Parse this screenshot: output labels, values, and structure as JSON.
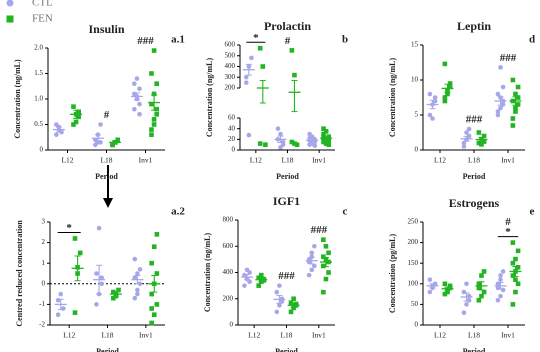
{
  "legend": [
    {
      "name": "CTL",
      "color": "#a6a6ea"
    },
    {
      "name": "FEN",
      "color": "#22b422"
    }
  ],
  "chart_data": [
    {
      "type": "dot",
      "title": "Insulin",
      "panel": "a.1",
      "ylabel": "Concentration (ng/mL)",
      "xlabel": "Period",
      "categories": [
        "L12",
        "L18",
        "Inv1"
      ],
      "ylim": [
        0,
        2
      ],
      "yticks": [
        0,
        0.5,
        {
          "value": 1,
          "label": "1.0"
        },
        1.5,
        {
          "value": 2,
          "label": "2.0"
        }
      ],
      "sig_labels": [
        null,
        "#",
        "###"
      ],
      "star_labels": [
        null,
        null,
        null
      ],
      "series": [
        {
          "points": [
            [
              0.3,
              0.45,
              0.35,
              0.5,
              0.4
            ],
            [
              0.1,
              0.15,
              0.5,
              0.2,
              0.3,
              0.15
            ],
            [
              0.8,
              1.0,
              1.2,
              1.1,
              1.4,
              0.9,
              1.3,
              1.05,
              0.7
            ]
          ],
          "mean": [
            0.4,
            0.23,
            1.05
          ],
          "sem": [
            0.05,
            0.07,
            0.07
          ]
        },
        {
          "points": [
            [
              0.5,
              0.7,
              0.75,
              0.85,
              0.55,
              0.65
            ],
            [
              0.1,
              0.15,
              0.2,
              0.1,
              0.15
            ],
            [
              0.3,
              0.5,
              0.7,
              0.9,
              1.1,
              1.3,
              1.5,
              1.95,
              0.8,
              0.4,
              0.6
            ]
          ],
          "mean": [
            0.7,
            0.15,
            0.93
          ],
          "sem": [
            0.08,
            0.03,
            0.15
          ]
        }
      ]
    },
    {
      "type": "dot",
      "title": "Prolactin",
      "panel": "b",
      "ylabel": "Concentration (ng/mL)",
      "xlabel": "Period",
      "categories": [
        "L12",
        "L18",
        "Inv1"
      ],
      "segments": [
        {
          "ylim": [
            0,
            60
          ],
          "yticks": [
            0,
            20,
            40,
            60
          ]
        },
        {
          "ylim": [
            200,
            600
          ],
          "yticks": [
            200,
            300,
            400,
            500,
            600
          ]
        }
      ],
      "sig_labels": [
        null,
        "#",
        null
      ],
      "star_labels": [
        "*",
        null,
        null
      ],
      "series": [
        {
          "points": [
            [
              250,
              400,
              480,
              300,
              28
            ],
            [
              40,
              30,
              10,
              20,
              5,
              15
            ],
            [
              30,
              20,
              15,
              10,
              25,
              20,
              18,
              12,
              8,
              22
            ]
          ],
          "mean": [
            370,
            20,
            18
          ],
          "sem": [
            50,
            6,
            2
          ]
        },
        {
          "points": [
            [
              570,
              400,
              10,
              12
            ],
            [
              550,
              320,
              10,
              15,
              12
            ],
            [
              40,
              35,
              10,
              15,
              20,
              25,
              30,
              12,
              18,
              22
            ]
          ],
          "mean": [
            200,
            180,
            22
          ],
          "sem": [
            70,
            90,
            3
          ]
        }
      ]
    },
    {
      "type": "dot",
      "title": "Leptin",
      "panel": "d",
      "ylabel": "Concentration (ng/mL)",
      "xlabel": "Period",
      "categories": [
        "L12",
        "L18",
        "Inv1"
      ],
      "ylim": [
        0,
        15
      ],
      "yticks": [
        0,
        5,
        10,
        15
      ],
      "sig_labels": [
        null,
        "###",
        "###"
      ],
      "star_labels": [
        null,
        null,
        null
      ],
      "series": [
        {
          "points": [
            [
              5,
              6.5,
              7.5,
              8,
              4.5,
              7
            ],
            [
              1,
              1.5,
              2,
              0.5,
              2.5,
              3
            ],
            [
              5,
              6,
              7,
              8,
              11.8,
              6.5,
              5.5,
              7.5,
              9
            ]
          ],
          "mean": [
            6.5,
            1.6,
            7
          ],
          "sem": [
            0.6,
            0.35,
            0.6
          ]
        },
        {
          "points": [
            [
              7,
              8.5,
              9,
              12.3,
              8,
              9.5,
              7.5
            ],
            [
              1,
              1.5,
              2,
              2.5,
              0.8,
              1.2
            ],
            [
              4.5,
              5.5,
              6.5,
              7,
              8,
              9,
              10,
              6,
              7.5,
              3.5
            ]
          ],
          "mean": [
            8.8,
            1.5,
            7
          ],
          "sem": [
            0.6,
            0.3,
            0.6
          ]
        }
      ]
    },
    {
      "type": "dot",
      "panel": "a.2",
      "ylabel": "Centred reduced concentration",
      "xlabel": "Period",
      "categories": [
        "L12",
        "L18",
        "Inv1"
      ],
      "ylim": [
        -2,
        3
      ],
      "yticks": [
        -2,
        -1,
        0,
        1,
        2,
        3
      ],
      "zero_line": true,
      "sig_labels": [
        null,
        null,
        null
      ],
      "star_labels": [
        "*",
        null,
        null
      ],
      "series": [
        {
          "points": [
            [
              -1.5,
              -0.5,
              -1.2,
              -0.8
            ],
            [
              -1,
              -0.5,
              0,
              0.5,
              2.7,
              0.3
            ],
            [
              -0.7,
              -0.3,
              0,
              0.3,
              0.5,
              0.7,
              1.2,
              -0.5
            ]
          ],
          "mean": [
            -1,
            0.2,
            0.2
          ],
          "sem": [
            0.25,
            0.7,
            0.2
          ]
        },
        {
          "points": [
            [
              -1.4,
              0.5,
              1.5,
              2.2,
              0.8
            ],
            [
              -0.7,
              -0.5,
              -0.3,
              -0.4,
              -0.6
            ],
            [
              -1.9,
              -1.5,
              -1,
              -0.5,
              0,
              0.5,
              1,
              1.8,
              2.4,
              -1.2
            ]
          ],
          "mean": [
            0.75,
            -0.5,
            0
          ],
          "sem": [
            0.6,
            0.1,
            0.4
          ]
        }
      ]
    },
    {
      "type": "dot",
      "title": "IGF1",
      "panel": "c",
      "ylabel": "Concentration (ng/mL)",
      "xlabel": "Period",
      "categories": [
        "L12",
        "L18",
        "Inv1"
      ],
      "ylim": [
        0,
        800
      ],
      "yticks": [
        0,
        200,
        400,
        600,
        800
      ],
      "sig_labels": [
        null,
        "###",
        "###"
      ],
      "star_labels": [
        null,
        null,
        null
      ],
      "series": [
        {
          "points": [
            [
              300,
              350,
              400,
              380,
              420,
              330
            ],
            [
              100,
              150,
              200,
              250,
              300,
              180
            ],
            [
              380,
              420,
              450,
              500,
              550,
              600,
              480,
              520
            ]
          ],
          "mean": [
            365,
            195,
            490
          ],
          "sem": [
            20,
            30,
            25
          ]
        },
        {
          "points": [
            [
              300,
              330,
              350,
              360,
              380,
              340
            ],
            [
              100,
              130,
              150,
              170,
              200,
              160
            ],
            [
              250,
              350,
              400,
              450,
              500,
              550,
              650,
              600,
              480,
              520
            ]
          ],
          "mean": [
            345,
            150,
            480
          ],
          "sem": [
            15,
            15,
            35
          ]
        }
      ]
    },
    {
      "type": "dot",
      "title": "Estrogens",
      "panel": "e",
      "ylabel": "Concentration (pg/mL)",
      "xlabel": "Period",
      "categories": [
        "L12",
        "L18",
        "Inv1"
      ],
      "ylim": [
        0,
        250
      ],
      "yticks": [
        0,
        50,
        100,
        150,
        200,
        250
      ],
      "sig_labels": [
        null,
        null,
        "#"
      ],
      "star_labels": [
        null,
        null,
        "*"
      ],
      "series": [
        {
          "points": [
            [
              80,
              90,
              100,
              110,
              95
            ],
            [
              30,
              50,
              70,
              80,
              100,
              60
            ],
            [
              60,
              70,
              85,
              100,
              120,
              130,
              90,
              110
            ]
          ],
          "mean": [
            95,
            68,
            95
          ],
          "sem": [
            5,
            10,
            8
          ]
        },
        {
          "points": [
            [
              75,
              80,
              90,
              100,
              85,
              95
            ],
            [
              60,
              70,
              80,
              100,
              120,
              130,
              90
            ],
            [
              50,
              80,
              100,
              120,
              130,
              140,
              150,
              160,
              180,
              200,
              110
            ]
          ],
          "mean": [
            88,
            95,
            130
          ],
          "sem": [
            4,
            10,
            12
          ]
        }
      ]
    }
  ]
}
